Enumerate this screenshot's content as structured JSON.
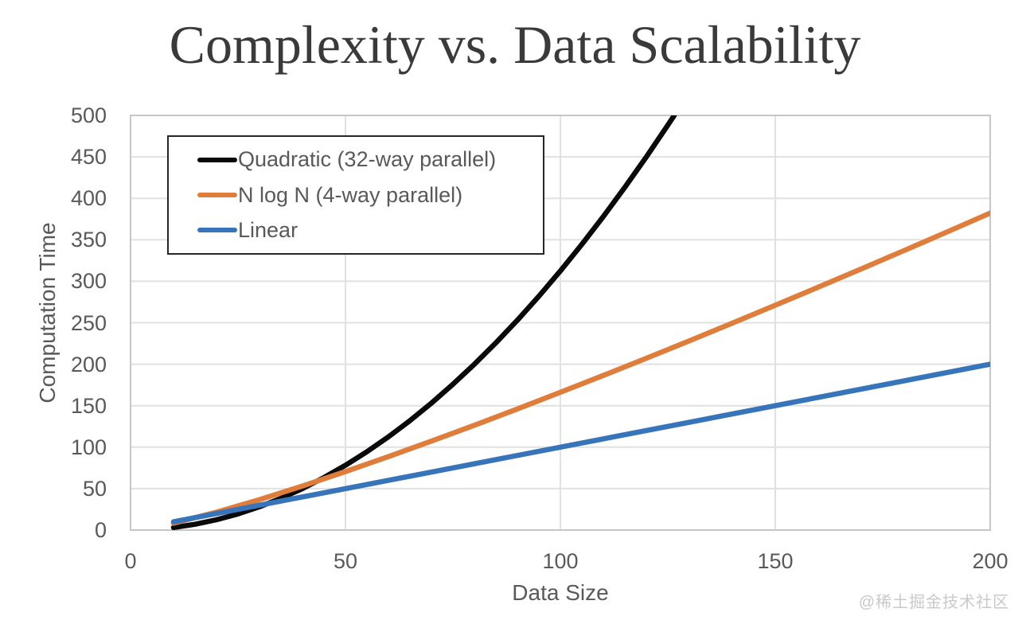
{
  "watermark": "@稀土掘金技术社区",
  "chart_data": {
    "type": "line",
    "title": "Complexity vs. Data Scalability",
    "xlabel": "Data Size",
    "ylabel": "Computation Time",
    "xlim": [
      0,
      200
    ],
    "ylim": [
      0,
      500
    ],
    "xticks": [
      0,
      50,
      100,
      150,
      200
    ],
    "yticks": [
      0,
      50,
      100,
      150,
      200,
      250,
      300,
      350,
      400,
      450,
      500
    ],
    "grid": true,
    "legend_position": "top-left-inside",
    "colors": {
      "grid": "#e1e1e1",
      "plot_border": "#c6c6c6",
      "axis_text": "#595959",
      "title_text": "#3a3a3a"
    },
    "series": [
      {
        "name": "Quadratic (32-way parallel)",
        "color": "#0a0a0a",
        "points": [
          [
            10,
            3.1
          ],
          [
            15,
            7.0
          ],
          [
            20,
            12.5
          ],
          [
            25,
            19.5
          ],
          [
            30,
            28.1
          ],
          [
            35,
            38.3
          ],
          [
            40,
            50
          ],
          [
            45,
            63.3
          ],
          [
            50,
            78.1
          ],
          [
            55,
            94.5
          ],
          [
            60,
            112.5
          ],
          [
            65,
            132.0
          ],
          [
            70,
            153.1
          ],
          [
            75,
            175.8
          ],
          [
            80,
            200
          ],
          [
            85,
            225.8
          ],
          [
            90,
            253.1
          ],
          [
            95,
            282.0
          ],
          [
            100,
            312.5
          ],
          [
            105,
            344.5
          ],
          [
            110,
            378.1
          ],
          [
            115,
            413.3
          ],
          [
            120,
            450
          ],
          [
            125,
            488.3
          ],
          [
            126.5,
            500
          ]
        ]
      },
      {
        "name": "N log N (4-way parallel)",
        "color": "#df7e3c",
        "points": [
          [
            10,
            8.3
          ],
          [
            20,
            21.6
          ],
          [
            30,
            36.8
          ],
          [
            40,
            53.2
          ],
          [
            50,
            70.5
          ],
          [
            60,
            88.6
          ],
          [
            70,
            107.3
          ],
          [
            80,
            126.4
          ],
          [
            90,
            146.1
          ],
          [
            100,
            166.1
          ],
          [
            110,
            186.5
          ],
          [
            120,
            207.2
          ],
          [
            130,
            228.2
          ],
          [
            140,
            249.5
          ],
          [
            150,
            271.1
          ],
          [
            160,
            292.9
          ],
          [
            170,
            314.9
          ],
          [
            180,
            337.1
          ],
          [
            190,
            359.6
          ],
          [
            200,
            382.2
          ]
        ]
      },
      {
        "name": "Linear",
        "color": "#3774b9",
        "points": [
          [
            10,
            10
          ],
          [
            200,
            200
          ]
        ]
      }
    ]
  }
}
